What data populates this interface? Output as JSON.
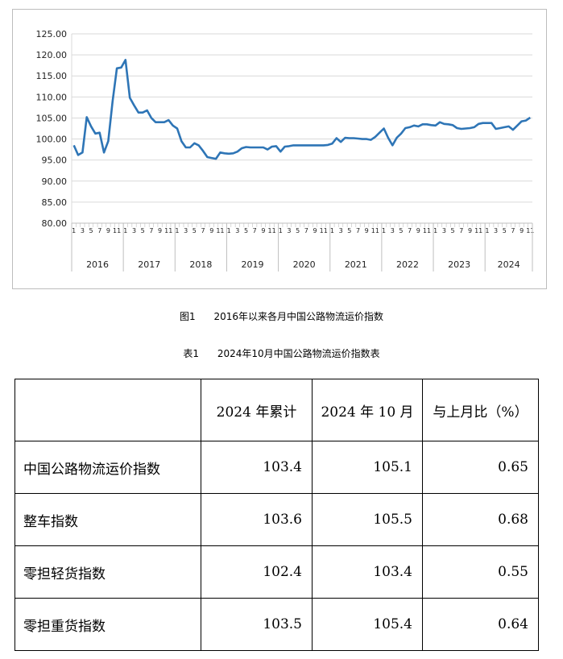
{
  "chart_data": {
    "type": "line",
    "title": "",
    "xlabel": "",
    "ylabel": "",
    "ylim": [
      80,
      125
    ],
    "yticks": [
      "125.00",
      "120.00",
      "115.00",
      "110.00",
      "105.00",
      "100.00",
      "95.00",
      "90.00",
      "85.00",
      "80.00"
    ],
    "years": [
      "2016",
      "2017",
      "2018",
      "2019",
      "2020",
      "2021",
      "2022",
      "2023",
      "2024"
    ],
    "month_ticks": [
      "1",
      "3",
      "5",
      "7",
      "9",
      "11"
    ],
    "grid": true,
    "legend": "none",
    "line_color": "#2e75b6",
    "series": [
      {
        "values": [
          98.5,
          96.2,
          96.8,
          105.2,
          103.0,
          101.3,
          101.5,
          96.8,
          99.5,
          109.0,
          116.8,
          117.0,
          118.8,
          109.8,
          108.0,
          106.3,
          106.3,
          106.8,
          105.0,
          104.0,
          104.0,
          104.0,
          104.5,
          103.2,
          102.5,
          99.5,
          98.0,
          98.0,
          99.0,
          98.5,
          97.2,
          95.7,
          95.5,
          95.3,
          96.8,
          96.6,
          96.5,
          96.6,
          97.0,
          97.8,
          98.1,
          98.0,
          98.0,
          98.0,
          98.0,
          97.5,
          98.2,
          98.3,
          97.0,
          98.2,
          98.3,
          98.5,
          98.5,
          98.5,
          98.5,
          98.5,
          98.5,
          98.5,
          98.5,
          98.6,
          98.9,
          100.2,
          99.3,
          100.3,
          100.2,
          100.2,
          100.1,
          100.0,
          100.0,
          99.8,
          100.5,
          101.5,
          102.5,
          100.3,
          98.5,
          100.3,
          101.3,
          102.6,
          102.8,
          103.2,
          103.0,
          103.5,
          103.5,
          103.3,
          103.2,
          104.0,
          103.6,
          103.5,
          103.3,
          102.6,
          102.4,
          102.5,
          102.6,
          102.8,
          103.6,
          103.8,
          103.8,
          103.8,
          102.4,
          102.6,
          102.8,
          103.0,
          102.2,
          103.2,
          104.2,
          104.4,
          105.1
        ]
      }
    ]
  },
  "captions": {
    "figure": "图1      2016年以来各月中国公路物流运价指数",
    "table": "表1      2024年10月中国公路物流运价指数表"
  },
  "table": {
    "headers": [
      "",
      "2024 年累计",
      "2024 年 10 月",
      "与上月比（%）"
    ],
    "rows": [
      {
        "name": "中国公路物流运价指数",
        "cum": "103.4",
        "oct": "105.1",
        "mom": "0.65"
      },
      {
        "name": "整车指数",
        "cum": "103.6",
        "oct": "105.5",
        "mom": "0.68"
      },
      {
        "name": "零担轻货指数",
        "cum": "102.4",
        "oct": "103.4",
        "mom": "0.55"
      },
      {
        "name": "零担重货指数",
        "cum": "103.5",
        "oct": "105.4",
        "mom": "0.64"
      }
    ]
  }
}
